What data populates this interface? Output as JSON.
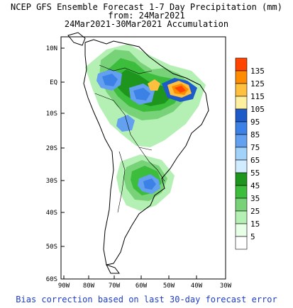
{
  "title_line1": "NCEP GFS Ensemble Forecast 1-7 Day Precipitation (mm)",
  "title_line2": "from: 24Mar2021",
  "title_line3": "24Mar2021-30Mar2021 Accumulation",
  "footer": "Bias correction based on last 30-day forecast error",
  "lat_labels": [
    "10N",
    "EQ",
    "10S",
    "20S",
    "30S",
    "40S",
    "50S",
    "60S"
  ],
  "lon_labels": [
    "90W",
    "80W",
    "70W",
    "60W",
    "50W",
    "40W",
    "30W"
  ],
  "legend": [
    {
      "label": "135",
      "color": "#ff4500"
    },
    {
      "label": "125",
      "color": "#ff8c00"
    },
    {
      "label": "115",
      "color": "#ffc040"
    },
    {
      "label": "105",
      "color": "#fff0a0"
    },
    {
      "label": "95",
      "color": "#1e5ac8"
    },
    {
      "label": "85",
      "color": "#3c82e6"
    },
    {
      "label": "75",
      "color": "#64a0f0"
    },
    {
      "label": "65",
      "color": "#a0d2fa"
    },
    {
      "label": "55",
      "color": "#d2ecff"
    },
    {
      "label": "45",
      "color": "#1e961e"
    },
    {
      "label": "35",
      "color": "#3cbe3c"
    },
    {
      "label": "25",
      "color": "#78d278"
    },
    {
      "label": "15",
      "color": "#b4f0b4"
    },
    {
      "label": "5",
      "color": "#e6ffe6"
    },
    {
      "label": "",
      "color": "#ffffff"
    }
  ]
}
